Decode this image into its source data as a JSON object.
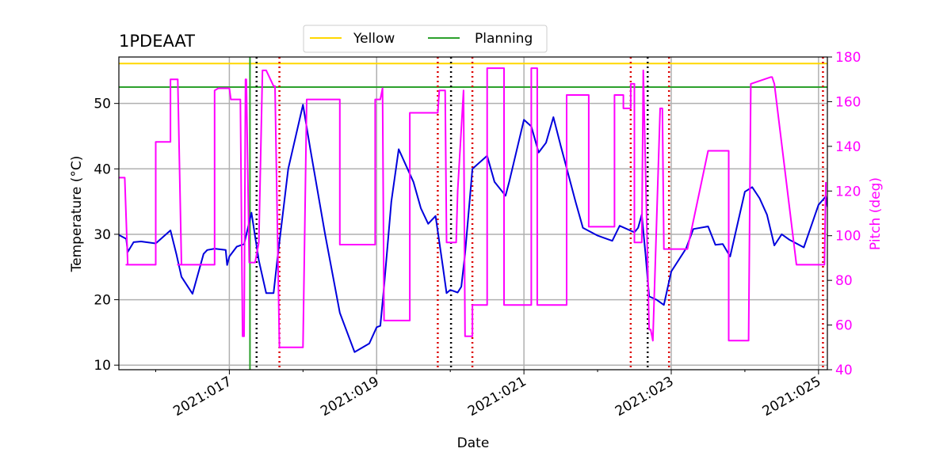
{
  "chart_data": {
    "type": "line",
    "title": "1PDEAAT",
    "xlabel": "Date",
    "ylabel": "Temperature ($^\\circ$C)",
    "y2label": "Pitch (deg)",
    "grid": true,
    "legend": {
      "placement": "top-center",
      "entries": [
        "Yellow",
        "Planning"
      ]
    },
    "x_range_days": [
      15.5,
      25.12
    ],
    "ylim": [
      9.3,
      57.1
    ],
    "y2lim": [
      40,
      180
    ],
    "x_tick_labels": [
      {
        "day": 17,
        "label": "2021:017"
      },
      {
        "day": 19,
        "label": "2021:019"
      },
      {
        "day": 21,
        "label": "2021:021"
      },
      {
        "day": 23,
        "label": "2021:023"
      },
      {
        "day": 25,
        "label": "2021:025"
      }
    ],
    "y_ticks": [
      10,
      20,
      30,
      40,
      50
    ],
    "y2_ticks": [
      40,
      60,
      80,
      100,
      120,
      140,
      160,
      180
    ],
    "colors": {
      "temperature": "#0000dd",
      "pitch": "#ff00ff",
      "yellow": "#ffd700",
      "planning": "#2ca02c",
      "black_marker": "#000000",
      "red_marker": "#dd0000",
      "grid": "#b0b0b0"
    },
    "limits": {
      "yellow": 56.1,
      "planning": 52.5,
      "planning_vertical_day": 17.28
    },
    "black_markers_days": [
      17.37,
      20.01,
      22.68
    ],
    "red_markers_days": [
      17.68,
      19.83,
      20.3,
      22.45,
      22.97,
      25.06
    ],
    "series": [
      {
        "name": "Temperature",
        "axis": "left",
        "x": [
          15.5,
          15.6,
          15.62,
          15.7,
          15.8,
          16.0,
          16.2,
          16.28,
          16.35,
          16.5,
          16.65,
          16.7,
          16.8,
          16.95,
          16.97,
          17.0,
          17.1,
          17.2,
          17.3,
          17.4,
          17.5,
          17.6,
          17.65,
          17.8,
          18.0,
          18.1,
          18.3,
          18.5,
          18.7,
          18.9,
          19.0,
          19.05,
          19.1,
          19.2,
          19.3,
          19.5,
          19.6,
          19.7,
          19.8,
          19.9,
          19.95,
          20.0,
          20.1,
          20.15,
          20.2,
          20.3,
          20.5,
          20.6,
          20.75,
          20.8,
          21.0,
          21.1,
          21.2,
          21.3,
          21.4,
          21.5,
          21.7,
          21.8,
          22.0,
          22.2,
          22.3,
          22.5,
          22.55,
          22.6,
          22.65,
          22.7,
          22.8,
          22.9,
          23.0,
          23.2,
          23.3,
          23.5,
          23.6,
          23.7,
          23.8,
          24.0,
          24.1,
          24.2,
          24.3,
          24.4,
          24.5,
          24.6,
          24.8,
          25.0,
          25.1,
          25.12
        ],
        "values": [
          29.9,
          29.3,
          27.3,
          28.8,
          28.9,
          28.6,
          30.6,
          27.0,
          23.5,
          20.9,
          27.0,
          27.6,
          27.8,
          27.6,
          25.3,
          26.6,
          28.1,
          28.5,
          33.3,
          26.0,
          21.0,
          21.0,
          26.0,
          40.0,
          49.8,
          43.0,
          30.0,
          18.0,
          12.0,
          13.3,
          15.8,
          16.0,
          22.0,
          35.0,
          43.0,
          38.0,
          34.0,
          31.6,
          32.8,
          25.0,
          21.0,
          21.5,
          21.1,
          22.0,
          27.0,
          40.0,
          42.0,
          38.0,
          35.9,
          38.0,
          47.5,
          46.5,
          42.5,
          44.0,
          47.9,
          43.5,
          35.0,
          31.0,
          29.8,
          29.0,
          31.3,
          30.3,
          31.0,
          33.0,
          27.0,
          20.5,
          20.0,
          19.2,
          24.3,
          27.8,
          30.8,
          31.2,
          28.4,
          28.5,
          26.6,
          36.5,
          37.2,
          35.5,
          33.0,
          28.3,
          30.0,
          29.2,
          28.0,
          34.5,
          35.8,
          34.2
        ]
      },
      {
        "name": "Pitch",
        "axis": "right",
        "x": [
          15.5,
          15.58,
          15.62,
          15.6,
          16.0,
          16.0,
          16.03,
          16.2,
          16.2,
          16.28,
          16.3,
          16.35,
          16.3,
          16.8,
          16.8,
          16.85,
          17.0,
          17.02,
          17.15,
          17.18,
          17.2,
          17.22,
          17.23,
          17.27,
          17.3,
          17.35,
          17.4,
          17.45,
          17.5,
          17.6,
          17.62,
          17.68,
          17.7,
          18.0,
          18.05,
          18.5,
          18.5,
          18.98,
          18.98,
          19.05,
          19.08,
          19.1,
          19.1,
          19.45,
          19.45,
          19.83,
          19.85,
          19.93,
          19.95,
          19.95,
          20.08,
          20.1,
          20.1,
          20.18,
          20.2,
          20.3,
          20.3,
          20.5,
          20.5,
          20.73,
          20.73,
          21.1,
          21.1,
          21.18,
          21.18,
          21.58,
          21.58,
          21.88,
          21.88,
          22.23,
          22.23,
          22.35,
          22.35,
          22.45,
          22.45,
          22.48,
          22.5,
          22.5,
          22.55,
          22.6,
          22.62,
          22.7,
          22.72,
          22.75,
          22.75,
          22.85,
          22.87,
          22.88,
          22.9,
          22.93,
          23.2,
          23.22,
          23.5,
          23.5,
          23.78,
          23.78,
          24.05,
          24.05,
          24.08,
          24.35,
          24.37,
          24.4,
          24.7,
          24.7,
          25.08,
          25.1,
          25.1
        ],
        "values": [
          126,
          126,
          87,
          87,
          87,
          142,
          142,
          142,
          170,
          170,
          170,
          87,
          87,
          87,
          165,
          166,
          166,
          161,
          161,
          55,
          55,
          170,
          170,
          88,
          88,
          88,
          97,
          174,
          174,
          167,
          167,
          50,
          50,
          50,
          161,
          161,
          96,
          96,
          161,
          161,
          166,
          62,
          62,
          62,
          155,
          155,
          165,
          165,
          97,
          97,
          97,
          120,
          120,
          165,
          55,
          55,
          69,
          69,
          175,
          175,
          69,
          69,
          175,
          175,
          69,
          69,
          163,
          163,
          104,
          104,
          163,
          163,
          157,
          157,
          168,
          168,
          168,
          97,
          97,
          97,
          174,
          58,
          58,
          53,
          53,
          157,
          157,
          157,
          94,
          94,
          94,
          94,
          138,
          138,
          138,
          53,
          53,
          53,
          168,
          171,
          171,
          168,
          87,
          87,
          87,
          124,
          124
        ]
      }
    ]
  }
}
